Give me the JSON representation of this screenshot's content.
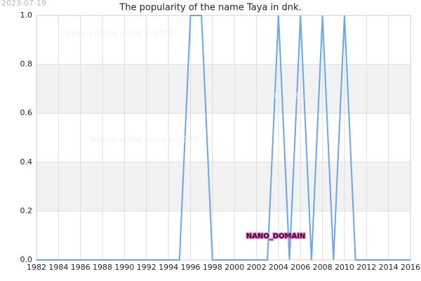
{
  "chart_data": {
    "type": "line",
    "title": "The popularity of the name Taya in dnk.",
    "date": "2023-07-19",
    "watermarks": [
      "Names of the world © 2023",
      "Names of the world © 2023",
      "Names of the world © 2023"
    ],
    "annotation": "NANO_DOMAIN",
    "x": [
      1982,
      1983,
      1984,
      1985,
      1986,
      1987,
      1988,
      1989,
      1990,
      1991,
      1992,
      1993,
      1994,
      1995,
      1996,
      1997,
      1998,
      1999,
      2000,
      2001,
      2002,
      2003,
      2004,
      2005,
      2006,
      2007,
      2008,
      2009,
      2010,
      2011,
      2012,
      2013,
      2014,
      2015,
      2016
    ],
    "values": [
      0,
      0,
      0,
      0,
      0,
      0,
      0,
      0,
      0,
      0,
      0,
      0,
      0,
      0,
      1,
      1,
      0,
      0,
      0,
      0,
      0,
      0,
      1,
      0,
      1,
      0,
      1,
      0,
      1,
      0,
      0,
      0,
      0,
      0,
      0
    ],
    "color": "#6aa6e8",
    "xlim": [
      1982,
      2016
    ],
    "xticks": [
      1982,
      1984,
      1986,
      1988,
      1990,
      1992,
      1994,
      1996,
      1998,
      2000,
      2002,
      2004,
      2006,
      2008,
      2010,
      2012,
      2014,
      2016
    ],
    "ylim": [
      0,
      1
    ],
    "yticks": [
      {
        "value": 0,
        "label": "0.0"
      },
      0.2,
      0.4,
      0.6,
      0.8,
      {
        "value": 1,
        "label": "1.0"
      }
    ],
    "grid": true,
    "bands": true
  }
}
